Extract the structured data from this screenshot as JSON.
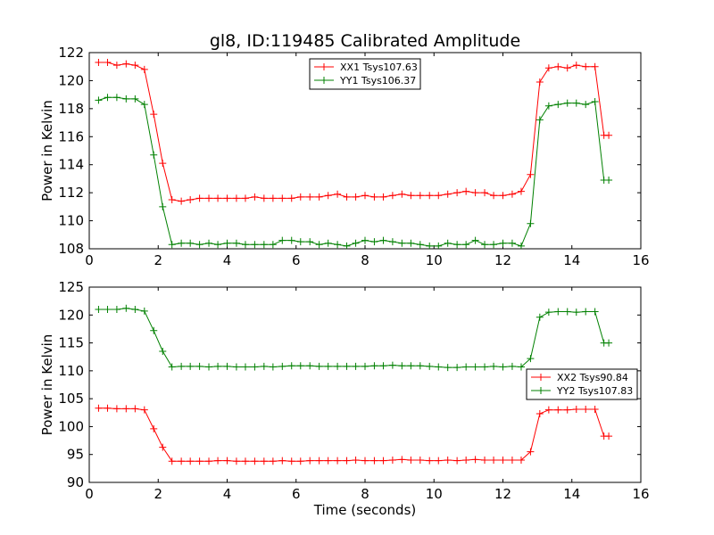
{
  "chart_data": [
    {
      "type": "line",
      "title": "gl8, ID:119485 Calibrated Amplitude",
      "xlabel": "",
      "ylabel": "Power in Kelvin",
      "xlim": [
        0,
        16
      ],
      "ylim": [
        108,
        122
      ],
      "xticks": [
        0,
        2,
        4,
        6,
        8,
        10,
        12,
        14,
        16
      ],
      "yticks": [
        108,
        110,
        112,
        114,
        116,
        118,
        120,
        122
      ],
      "legend": "top-center",
      "x": [
        0.27,
        0.53,
        0.8,
        1.07,
        1.33,
        1.6,
        1.87,
        2.13,
        2.4,
        2.67,
        2.93,
        3.2,
        3.47,
        3.73,
        4.0,
        4.27,
        4.53,
        4.8,
        5.07,
        5.33,
        5.6,
        5.87,
        6.13,
        6.4,
        6.67,
        6.93,
        7.2,
        7.47,
        7.73,
        8.0,
        8.27,
        8.53,
        8.8,
        9.07,
        9.33,
        9.6,
        9.87,
        10.13,
        10.4,
        10.67,
        10.93,
        11.2,
        11.47,
        11.73,
        12.0,
        12.27,
        12.53,
        12.8,
        13.07,
        13.33,
        13.6,
        13.87,
        14.13,
        14.4,
        14.67,
        14.93,
        15.07
      ],
      "series": [
        {
          "name": "XX1 Tsys107.63",
          "color": "#ff0000",
          "values": [
            121.3,
            121.3,
            121.1,
            121.2,
            121.1,
            120.8,
            117.6,
            114.1,
            111.5,
            111.4,
            111.5,
            111.6,
            111.6,
            111.6,
            111.6,
            111.6,
            111.6,
            111.7,
            111.6,
            111.6,
            111.6,
            111.6,
            111.7,
            111.7,
            111.7,
            111.8,
            111.9,
            111.7,
            111.7,
            111.8,
            111.7,
            111.7,
            111.8,
            111.9,
            111.8,
            111.8,
            111.8,
            111.8,
            111.9,
            112.0,
            112.1,
            112.0,
            112.0,
            111.8,
            111.8,
            111.9,
            112.1,
            113.3,
            119.9,
            120.9,
            121.0,
            120.9,
            121.1,
            121.0,
            121.0,
            116.1,
            116.1
          ]
        },
        {
          "name": "YY1 Tsys106.37",
          "color": "#008000",
          "values": [
            118.6,
            118.8,
            118.8,
            118.7,
            118.7,
            118.3,
            114.7,
            111.0,
            108.3,
            108.4,
            108.4,
            108.3,
            108.4,
            108.3,
            108.4,
            108.4,
            108.3,
            108.3,
            108.3,
            108.3,
            108.6,
            108.6,
            108.5,
            108.5,
            108.3,
            108.4,
            108.3,
            108.2,
            108.4,
            108.6,
            108.5,
            108.6,
            108.5,
            108.4,
            108.4,
            108.3,
            108.2,
            108.2,
            108.4,
            108.3,
            108.3,
            108.6,
            108.3,
            108.3,
            108.4,
            108.4,
            108.2,
            109.8,
            117.2,
            118.2,
            118.3,
            118.4,
            118.4,
            118.3,
            118.5,
            112.9,
            112.9
          ]
        }
      ]
    },
    {
      "type": "line",
      "title": "",
      "xlabel": "Time (seconds)",
      "ylabel": "Power in Kelvin",
      "xlim": [
        0,
        16
      ],
      "ylim": [
        90,
        125
      ],
      "xticks": [
        0,
        2,
        4,
        6,
        8,
        10,
        12,
        14,
        16
      ],
      "yticks": [
        90,
        95,
        100,
        105,
        110,
        115,
        120,
        125
      ],
      "legend": "center-right",
      "x": [
        0.27,
        0.53,
        0.8,
        1.07,
        1.33,
        1.6,
        1.87,
        2.13,
        2.4,
        2.67,
        2.93,
        3.2,
        3.47,
        3.73,
        4.0,
        4.27,
        4.53,
        4.8,
        5.07,
        5.33,
        5.6,
        5.87,
        6.13,
        6.4,
        6.67,
        6.93,
        7.2,
        7.47,
        7.73,
        8.0,
        8.27,
        8.53,
        8.8,
        9.07,
        9.33,
        9.6,
        9.87,
        10.13,
        10.4,
        10.67,
        10.93,
        11.2,
        11.47,
        11.73,
        12.0,
        12.27,
        12.53,
        12.8,
        13.07,
        13.33,
        13.6,
        13.87,
        14.13,
        14.4,
        14.67,
        14.93,
        15.07
      ],
      "series": [
        {
          "name": "XX2 Tsys90.84",
          "color": "#ff0000",
          "values": [
            103.3,
            103.3,
            103.2,
            103.2,
            103.2,
            103.0,
            99.6,
            96.3,
            93.8,
            93.8,
            93.8,
            93.8,
            93.8,
            93.9,
            93.9,
            93.8,
            93.8,
            93.8,
            93.8,
            93.8,
            93.9,
            93.8,
            93.8,
            93.9,
            93.9,
            93.9,
            93.9,
            93.9,
            94.0,
            93.9,
            93.9,
            93.9,
            94.0,
            94.1,
            94.0,
            94.0,
            93.9,
            93.9,
            94.0,
            93.9,
            94.0,
            94.1,
            94.0,
            94.0,
            94.0,
            94.0,
            94.0,
            95.5,
            102.3,
            103.0,
            103.0,
            103.0,
            103.1,
            103.1,
            103.1,
            98.3,
            98.3
          ]
        },
        {
          "name": "YY2 Tsys107.83",
          "color": "#008000",
          "values": [
            121.0,
            121.0,
            121.0,
            121.2,
            121.0,
            120.7,
            117.2,
            113.5,
            110.7,
            110.8,
            110.8,
            110.8,
            110.7,
            110.8,
            110.8,
            110.7,
            110.7,
            110.7,
            110.8,
            110.7,
            110.8,
            110.9,
            110.9,
            110.9,
            110.8,
            110.8,
            110.8,
            110.8,
            110.8,
            110.8,
            110.9,
            110.9,
            111.0,
            110.9,
            110.9,
            110.9,
            110.8,
            110.7,
            110.6,
            110.6,
            110.7,
            110.7,
            110.7,
            110.8,
            110.7,
            110.8,
            110.7,
            112.2,
            119.6,
            120.5,
            120.6,
            120.6,
            120.5,
            120.6,
            120.6,
            115.0,
            115.0
          ]
        }
      ]
    }
  ]
}
